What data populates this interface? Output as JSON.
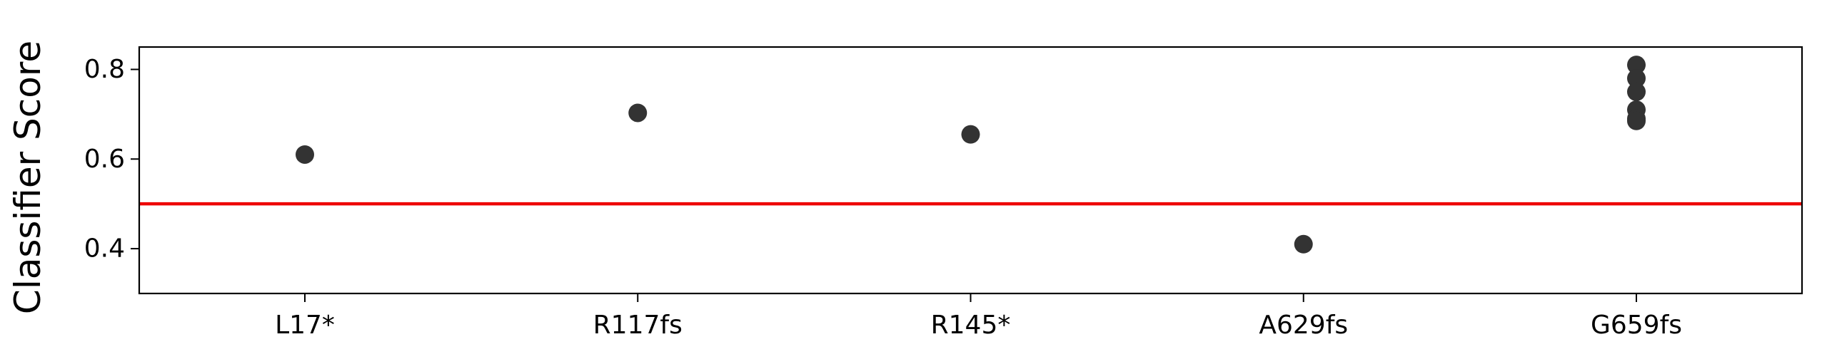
{
  "chart_data": {
    "type": "scatter",
    "title": "",
    "xlabel": "",
    "ylabel": "Classifier Score",
    "categories": [
      "L17*",
      "R117fs",
      "R145*",
      "A629fs",
      "G659fs"
    ],
    "points": [
      {
        "category": "L17*",
        "y": 0.61
      },
      {
        "category": "R117fs",
        "y": 0.703
      },
      {
        "category": "R145*",
        "y": 0.655
      },
      {
        "category": "A629fs",
        "y": 0.41
      },
      {
        "category": "G659fs",
        "y": 0.81
      },
      {
        "category": "G659fs",
        "y": 0.78
      },
      {
        "category": "G659fs",
        "y": 0.75
      },
      {
        "category": "G659fs",
        "y": 0.71
      },
      {
        "category": "G659fs",
        "y": 0.69
      },
      {
        "category": "G659fs",
        "y": 0.685
      }
    ],
    "ylim": [
      0.3,
      0.85
    ],
    "yticks": [
      0.4,
      0.6,
      0.8
    ],
    "ytick_labels": [
      "0.4",
      "0.6",
      "0.8"
    ],
    "threshold": 0.5,
    "grid": false,
    "colors": {
      "points": "#333333",
      "threshold": "#ee0000",
      "axes": "#000000"
    }
  }
}
